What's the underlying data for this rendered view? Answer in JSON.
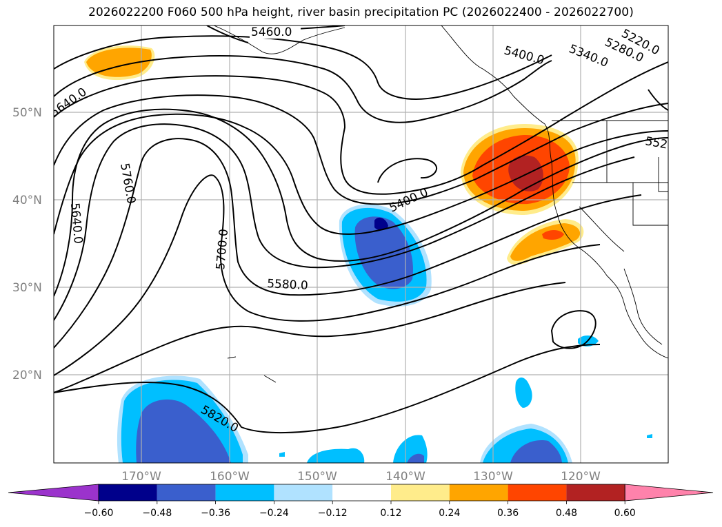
{
  "title": "2026022200 F060 500 hPa height, river basin precipitation PC (2026022400 - 2026022700)",
  "lat_labels": [
    "50°N",
    "40°N",
    "30°N",
    "20°N"
  ],
  "lon_labels": [
    "170°W",
    "160°W",
    "150°W",
    "140°W",
    "130°W",
    "120°W"
  ],
  "contour_labels": [
    "5460.0",
    "5220.0",
    "5280.0",
    "5340.0",
    "5400.0",
    "5640.0",
    "5760.0",
    "5640.0",
    "5700.0",
    "5400.0",
    "5580.0",
    "5820.0",
    "552"
  ],
  "colorbar": {
    "ticks": [
      "−0.60",
      "−0.48",
      "−0.36",
      "−0.24",
      "−0.12",
      "0.12",
      "0.24",
      "0.36",
      "0.48",
      "0.60"
    ],
    "colors": [
      "#9b33cc",
      "#00008b",
      "#3a5fcd",
      "#00bfff",
      "#b0e2ff",
      "#ffffff",
      "#ffec8b",
      "#ffa500",
      "#ff4500",
      "#b22222",
      "#ff82ab"
    ]
  },
  "colors": {
    "strong_negative": "#00008b",
    "negative": "#3a5fcd",
    "moderate_negative": "#00bfff",
    "weak_negative": "#b0e2ff",
    "weak_positive": "#ffec8b",
    "positive": "#ffa500",
    "moderate_positive": "#ff4500",
    "strong_positive": "#b22222"
  }
}
